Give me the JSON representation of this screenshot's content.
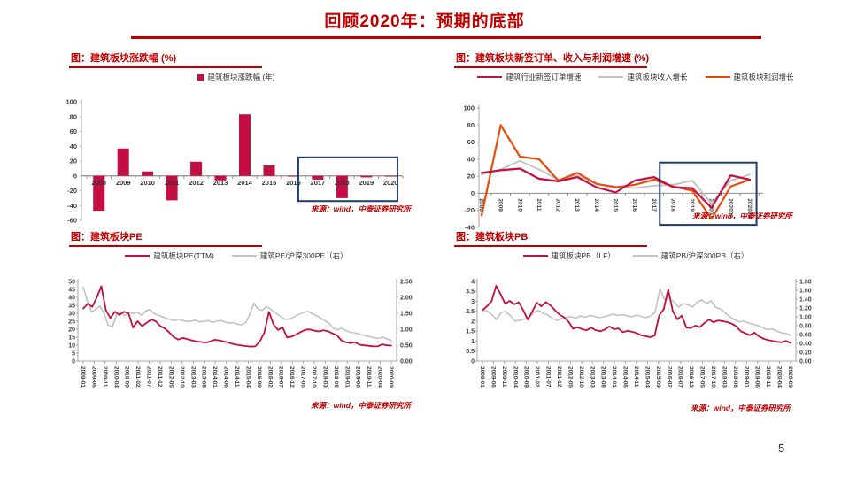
{
  "page": {
    "title": "回顾2020年：预期的底部",
    "page_number": "5"
  },
  "colors": {
    "crimson": "#C40D42",
    "orange": "#E84C0D",
    "gray": "#C2C2C2",
    "navy": "#1F3D68",
    "title_red": "#C00000",
    "axis": "#A6A6A6",
    "zero_axis": "#8C8C8C",
    "text": "#404040"
  },
  "chart_data": [
    {
      "id": "sector-annual-returns",
      "type": "bar",
      "title": "图：建筑板块涨跌幅 (%)",
      "legend": [
        {
          "label": "建筑板块涨跌幅 (年)",
          "color": "crimson",
          "marker": "square"
        }
      ],
      "categories": [
        "2008",
        "2009",
        "2010",
        "2011",
        "2012",
        "2013",
        "2014",
        "2015",
        "2016",
        "2017",
        "2018",
        "2019",
        "2020"
      ],
      "values": [
        -47,
        37,
        6,
        -33,
        19,
        -6,
        83,
        14,
        -1,
        -5,
        -30,
        -2,
        -1
      ],
      "ylim": [
        -60,
        100
      ],
      "ytick_step": 20,
      "highlight_box": {
        "from_index": 8.7,
        "to_index": 12.78,
        "y_from": -34,
        "y_to": 25
      },
      "source": "来源：wind，中泰证券研究所"
    },
    {
      "id": "orders-revenue-profit-growth",
      "type": "line",
      "title": "图：建筑板块新签订单、收入与利润增速 (%)",
      "categories": [
        "2008",
        "2009",
        "2010",
        "2011",
        "2012",
        "2013",
        "2014",
        "2015",
        "2016",
        "2017",
        "2018",
        "2019",
        "202001",
        "202002",
        "202003"
      ],
      "series": [
        {
          "name": "建筑行业新签订单增速",
          "color": "crimson",
          "values": [
            24,
            27,
            29,
            17,
            14,
            19,
            7,
            1,
            15,
            19,
            7,
            6,
            -17,
            21,
            16
          ]
        },
        {
          "name": "建筑板块收入增长",
          "color": "gray",
          "values": [
            22,
            28,
            38,
            28,
            16,
            21,
            11,
            8,
            6,
            9,
            10,
            15,
            -12,
            15,
            22
          ]
        },
        {
          "name": "建筑板块利润增长",
          "color": "orange",
          "values": [
            -26,
            80,
            43,
            40,
            15,
            24,
            11,
            7,
            10,
            16,
            8,
            3,
            -30,
            8,
            16
          ]
        }
      ],
      "ylim": [
        -40,
        100
      ],
      "ytick_step": 20,
      "highlight_box": {
        "from_index": 9.3,
        "to_index": 14.35,
        "y_from": -37,
        "y_to": 36
      },
      "source": "来源：wind，中泰证券研究所"
    },
    {
      "id": "sector-pe",
      "type": "dual-line",
      "title": "图：建筑板块PE",
      "categories": [
        "2009-01",
        "2009-06",
        "2009-11",
        "2010-04",
        "2010-09",
        "2011-02",
        "2011-07",
        "2011-12",
        "2012-05",
        "2012-10",
        "2013-03",
        "2013-08",
        "2014-01",
        "2014-06",
        "2014-11",
        "2015-04",
        "2015-09",
        "2016-02",
        "2016-07",
        "2016-12",
        "2017-05",
        "2017-10",
        "2018-03",
        "2018-08",
        "2019-01",
        "2019-06",
        "2019-11",
        "2020-04",
        "2020-09"
      ],
      "left_axis": {
        "min": 0,
        "max": 50,
        "step": 5
      },
      "right_axis": {
        "min": 0,
        "max": 2.5,
        "step": 0.5
      },
      "series": [
        {
          "name": "建筑板块PE(TTM)",
          "color": "crimson",
          "axis": "left",
          "values": [
            33,
            36,
            34,
            40,
            47,
            32,
            27,
            31,
            29,
            31,
            30,
            21,
            25,
            22,
            24,
            26,
            25,
            22,
            20.5,
            18,
            15,
            13.5,
            14.5,
            13.8,
            13,
            12.3,
            12,
            11.6,
            12.2,
            13.4,
            13,
            12.4,
            11.6,
            10.8,
            10.2,
            9.8,
            9.4,
            9.1,
            9.3,
            12.5,
            18,
            31,
            23,
            19.5,
            21.3,
            14.8,
            15.4,
            16.6,
            18.2,
            19.6,
            19.9,
            19.1,
            18.6,
            19.3,
            18.7,
            17.4,
            16.2,
            13,
            11.8,
            11.3,
            11.8,
            10.3,
            9.9,
            9.6,
            9.3,
            9.2,
            10.5,
            9.9,
            9.7
          ]
        },
        {
          "name": "建筑PE/沪深300PE（右）",
          "color": "gray",
          "axis": "right",
          "values": [
            2.32,
            1.9,
            1.55,
            1.62,
            1.73,
            1.5,
            1.13,
            1.07,
            1.44,
            1.54,
            1.42,
            1.54,
            1.49,
            1.53,
            1.44,
            1.57,
            1.62,
            1.5,
            1.44,
            1.39,
            1.34,
            1.3,
            1.27,
            1.31,
            1.26,
            1.24,
            1.26,
            1.28,
            1.23,
            1.25,
            1.27,
            1.22,
            1.25,
            1.28,
            1.23,
            1.19,
            1.21,
            1.16,
            1.14,
            1.2,
            1.46,
            1.82,
            1.63,
            1.59,
            1.71,
            1.63,
            1.54,
            1.44,
            1.34,
            1.3,
            1.34,
            1.41,
            1.48,
            1.53,
            1.56,
            1.49,
            1.43,
            1.35,
            1.27,
            1.19,
            1.04,
            0.98,
            1.03,
            0.96,
            0.91,
            0.89,
            0.86,
            0.82,
            0.79,
            0.76,
            0.73,
            0.71,
            0.75,
            0.69,
            0.65
          ]
        }
      ],
      "source": "来源：wind，中泰证券研究所"
    },
    {
      "id": "sector-pb",
      "type": "dual-line",
      "title": "图：建筑板块PB",
      "categories": [
        "2009-01",
        "2009-06",
        "2009-11",
        "2010-04",
        "2010-09",
        "2011-02",
        "2011-07",
        "2011-12",
        "2012-05",
        "2012-10",
        "2013-03",
        "2013-08",
        "2014-01",
        "2014-06",
        "2014-11",
        "2015-04",
        "2015-09",
        "2016-02",
        "2016-07",
        "2016-12",
        "2017-05",
        "2017-10",
        "2018-03",
        "2018-08",
        "2019-01",
        "2019-06",
        "2019-11",
        "2020-04",
        "2020-09"
      ],
      "left_axis": {
        "min": 0,
        "max": 4,
        "step": 0.5
      },
      "right_axis": {
        "min": 0,
        "max": 1.8,
        "step": 0.2
      },
      "series": [
        {
          "name": "建筑板块PB（LF）",
          "color": "crimson",
          "axis": "left",
          "values": [
            2.55,
            2.75,
            3.0,
            3.78,
            3.35,
            2.88,
            3.02,
            2.85,
            2.95,
            2.55,
            2.08,
            2.5,
            2.93,
            2.75,
            2.96,
            2.8,
            2.55,
            2.33,
            2.2,
            1.98,
            1.62,
            1.7,
            1.6,
            1.55,
            1.67,
            1.55,
            1.5,
            1.58,
            1.74,
            1.6,
            1.64,
            1.45,
            1.52,
            1.47,
            1.41,
            1.3,
            1.25,
            1.2,
            1.28,
            2.3,
            2.6,
            3.6,
            2.52,
            2.1,
            2.28,
            1.68,
            1.66,
            1.78,
            1.7,
            1.92,
            2.08,
            1.95,
            2.04,
            2.0,
            1.96,
            1.88,
            1.74,
            1.5,
            1.4,
            1.3,
            1.43,
            1.24,
            1.12,
            1.06,
            1.01,
            0.97,
            0.94,
            1.01,
            0.91
          ]
        },
        {
          "name": "建筑PB/沪深300PB（右）",
          "color": "gray",
          "axis": "right",
          "values": [
            1.15,
            1.13,
            1.05,
            0.94,
            1.1,
            1.12,
            1.02,
            0.9,
            0.92,
            0.95,
            0.98,
            1.1,
            1.15,
            1.08,
            1.04,
            0.96,
            0.92,
            0.96,
            0.99,
            1.0,
            0.97,
            1.02,
            0.99,
            1.03,
            1.01,
            0.98,
            1.0,
            1.03,
            1.06,
            1.03,
            1.05,
            1.02,
            1.0,
            1.04,
            1.01,
            0.98,
            1.02,
            1.1,
            1.63,
            1.4,
            1.42,
            1.34,
            1.22,
            1.3,
            1.27,
            1.22,
            1.33,
            1.38,
            1.3,
            1.36,
            1.21,
            1.18,
            1.09,
            1.0,
            0.93,
            0.89,
            0.9,
            0.86,
            0.83,
            0.8,
            0.76,
            0.71,
            0.73,
            0.68,
            0.64,
            0.62,
            0.58
          ]
        }
      ],
      "source": "来源：wind，中泰证券研究所"
    }
  ]
}
